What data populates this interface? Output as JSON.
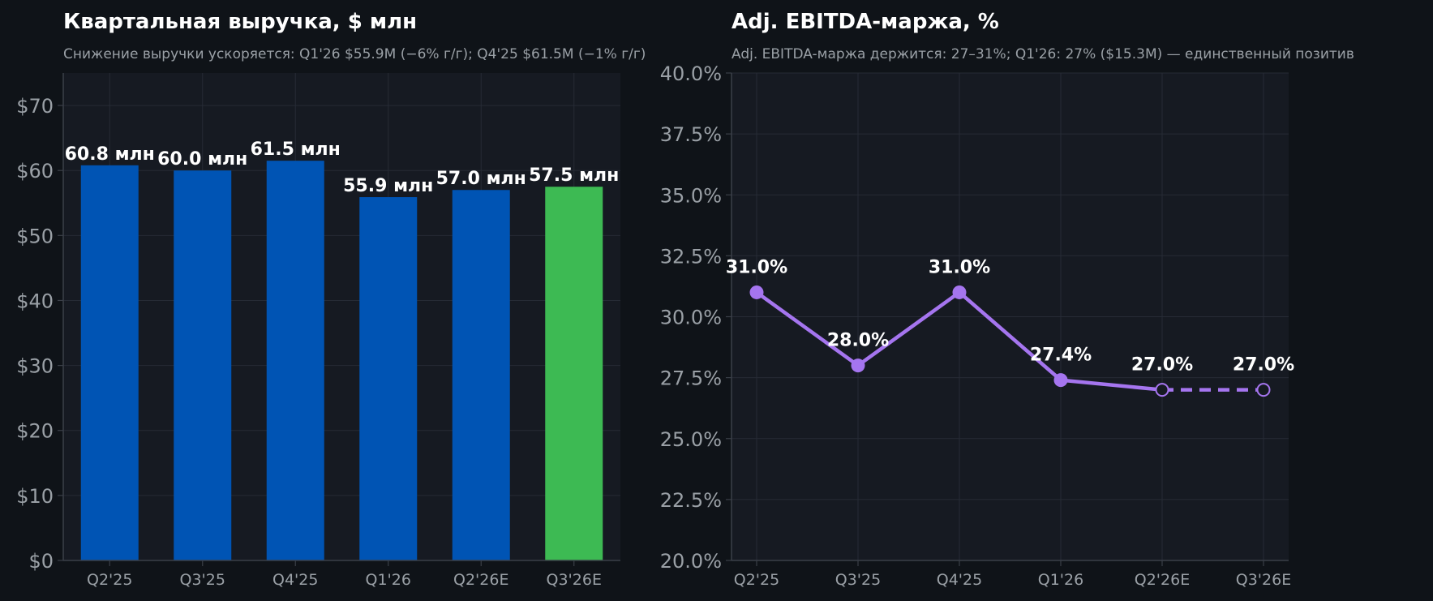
{
  "colors": {
    "background": "#0f1318",
    "plot_background": "#161a22",
    "grid": "#262b35",
    "axis": "#3a3f48",
    "actual_bar": "#0054b4",
    "estimate_bar": "#3dba53",
    "margin_line": "#a575ef",
    "text": "#ffffff",
    "muted_text": "#9aa0a6"
  },
  "chart_data": [
    {
      "type": "bar",
      "title": "Квартальная выручка, $ млн",
      "subtitle": "Снижение выручки ускоряется: Q1'26 $55.9M (−6% г/г); Q4'25 $61.5M (−1% г/г)",
      "categories": [
        "Q2'25",
        "Q3'25",
        "Q4'25",
        "Q1'26",
        "Q2'26E",
        "Q3'26E"
      ],
      "values": [
        60.8,
        60.0,
        61.5,
        55.9,
        57.0,
        57.5
      ],
      "data_labels": [
        "60.8 млн",
        "60.0 млн",
        "61.5 млн",
        "55.9 млн",
        "57.0 млн",
        "57.5 млн"
      ],
      "highlight_index": 5,
      "ylim": [
        0,
        75
      ],
      "yticks": [
        0,
        10,
        20,
        30,
        40,
        50,
        60,
        70
      ],
      "ytick_labels": [
        "$0",
        "$10",
        "$20",
        "$30",
        "$40",
        "$50",
        "$60",
        "$70"
      ],
      "xlabel": "",
      "ylabel": "",
      "grid": true
    },
    {
      "type": "line",
      "title": "Adj. EBITDA-маржа, %",
      "subtitle": "Adj. EBITDA-маржа держится: 27–31%; Q1'26: 27% ($15.3M) — единственный позитив",
      "categories": [
        "Q2'25",
        "Q3'25",
        "Q4'25",
        "Q1'26",
        "Q2'26E",
        "Q3'26E"
      ],
      "values": [
        31.0,
        28.0,
        31.0,
        27.4,
        27.0,
        27.0
      ],
      "data_labels": [
        "31.0%",
        "28.0%",
        "31.0%",
        "27.4%",
        "27.0%",
        "27.0%"
      ],
      "estimate_from_index": 4,
      "ylim": [
        20,
        40
      ],
      "yticks": [
        20,
        22.5,
        25,
        27.5,
        30,
        32.5,
        35,
        37.5,
        40
      ],
      "ytick_labels": [
        "20.0%",
        "22.5%",
        "25.0%",
        "27.5%",
        "30.0%",
        "32.5%",
        "35.0%",
        "37.5%",
        "40.0%"
      ],
      "xlabel": "",
      "ylabel": "",
      "grid": true
    }
  ]
}
